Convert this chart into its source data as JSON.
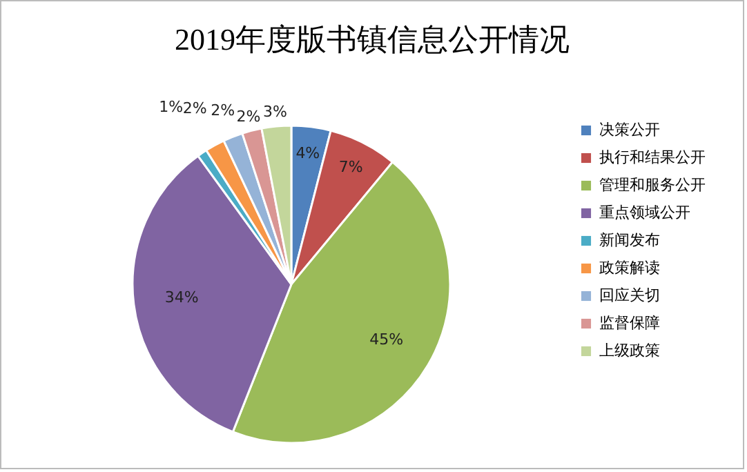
{
  "chart_data": {
    "type": "pie",
    "title": "2019年度版书镇信息公开情况",
    "categories": [
      "决策公开",
      "执行和结果公开",
      "管理和服务公开",
      "重点领域公开",
      "新闻发布",
      "政策解读",
      "回应关切",
      "监督保障",
      "上级政策"
    ],
    "values": [
      4,
      7,
      45,
      34,
      1,
      2,
      2,
      2,
      3
    ],
    "colors": [
      "#4f81bd",
      "#c0504d",
      "#9bbb59",
      "#8064a2",
      "#4bacc6",
      "#f79646",
      "#95b3d7",
      "#d99694",
      "#c3d69b"
    ],
    "value_labels": [
      "4%",
      "7%",
      "45%",
      "34%",
      "1%",
      "2%",
      "2%",
      "2%",
      "3%"
    ],
    "legend": "right"
  }
}
